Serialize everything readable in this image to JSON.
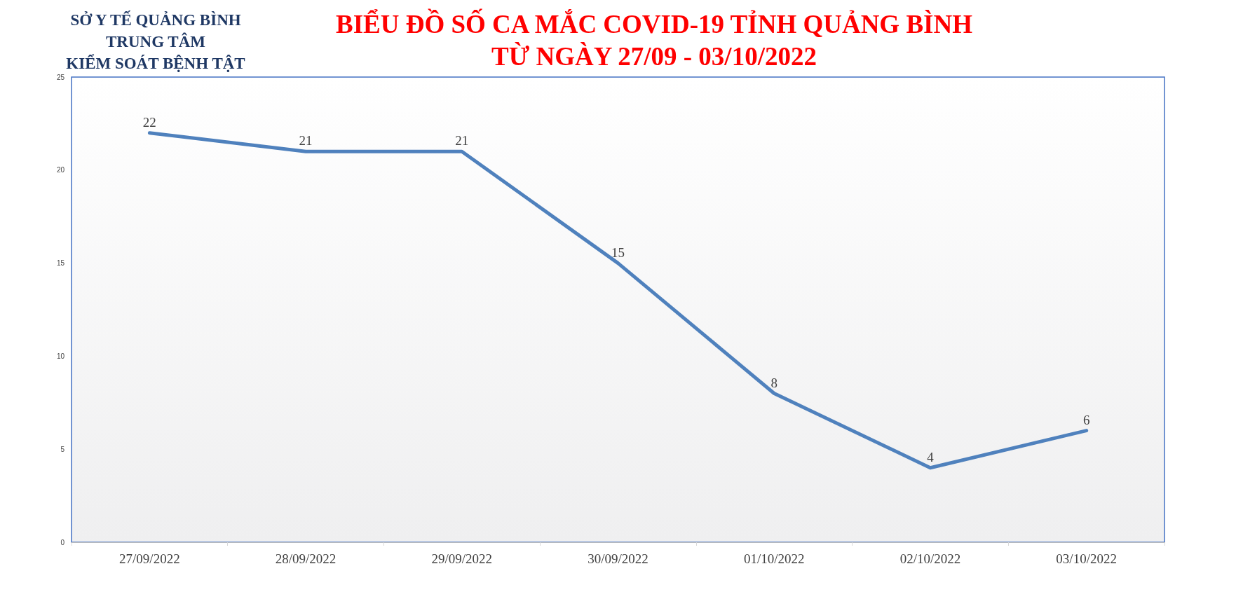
{
  "chart_data": {
    "type": "line",
    "title": "BIỂU ĐỒ SỐ CA MẮC COVID-19 TỈNH QUẢNG BÌNH\nTỪ NGÀY 27/09 - 03/10/2022",
    "annotations": [
      "SỞ Y TẾ QUẢNG BÌNH\nTRUNG TÂM\nKIỂM SOÁT BỆNH TẬT"
    ],
    "categories": [
      "27/09/2022",
      "28/09/2022",
      "29/09/2022",
      "30/09/2022",
      "01/10/2022",
      "02/10/2022",
      "03/10/2022"
    ],
    "series": [
      {
        "color": "#4f81bd",
        "values": [
          22,
          21,
          21,
          15,
          8,
          4,
          6
        ]
      }
    ],
    "ylim": [
      0,
      25
    ],
    "yticks": [
      0,
      5,
      10,
      15,
      20,
      25
    ],
    "grid": false,
    "marker": "none",
    "line_style": "solid",
    "data_labels": true
  }
}
